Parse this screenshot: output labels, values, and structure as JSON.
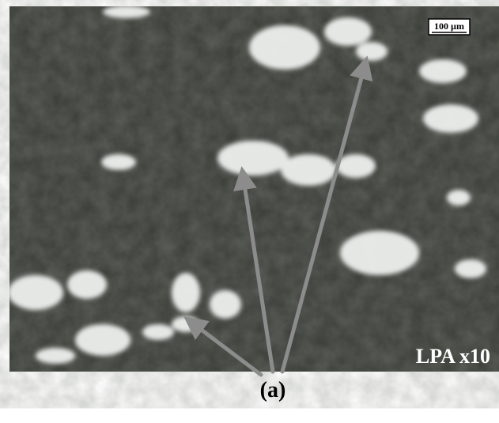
{
  "scale_bar": "100 µm",
  "magnification": "LPA x10",
  "label": "(a)"
}
